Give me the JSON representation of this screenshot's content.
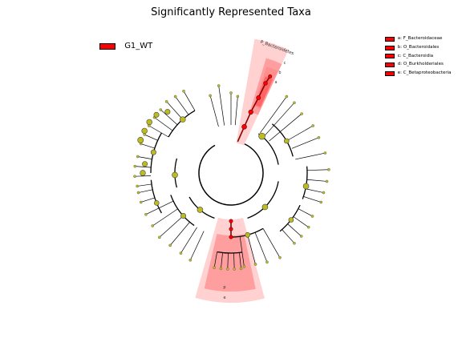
{
  "title": "Significantly Represented Taxa",
  "group_legend": {
    "label": "G1_WT",
    "color": "#ff0000"
  },
  "taxa_legend": [
    {
      "key": "a",
      "label": "a: F_Bacteroidaceae"
    },
    {
      "key": "b",
      "label": "b: O_Bacteroidales"
    },
    {
      "key": "c",
      "label": "c: C_Bacteroidia"
    },
    {
      "key": "d",
      "label": "d: O_Burkholderiales"
    },
    {
      "key": "e",
      "label": "e: C_Betaproteobacteria"
    }
  ],
  "clade_labels": {
    "bacteroidetes_phylum": "P_Bacteroidetes",
    "c": "c",
    "b": "b",
    "a": "a",
    "p_bottom": "p",
    "e_bottom": "e"
  },
  "colors": {
    "highlight_light": "#ffcccc",
    "highlight_mid": "#ff8c8c",
    "highlight_strong": "#ff4040",
    "node_default": "#bcbc1e",
    "node_significant": "#ff0000",
    "edge": "#000000"
  }
}
